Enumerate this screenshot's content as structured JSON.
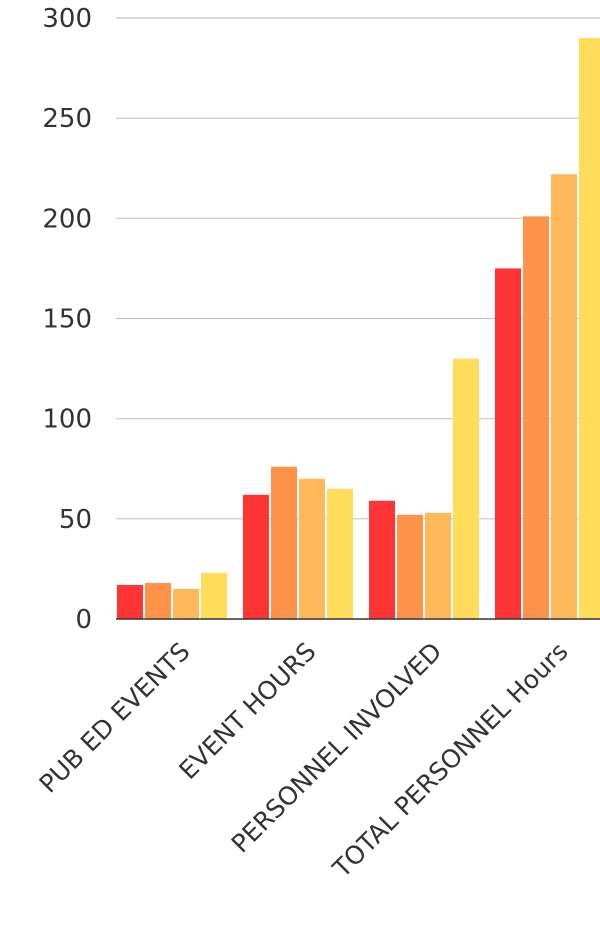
{
  "chart_data": {
    "type": "bar",
    "categories": [
      "PUB ED EVENTS",
      "EVENT HOURS",
      "PERSONNEL INVOLVED",
      "TOTAL PERSONNEL Hours"
    ],
    "series": [
      {
        "values": [
          17,
          62,
          59,
          175
        ]
      },
      {
        "values": [
          18,
          76,
          52,
          201
        ]
      },
      {
        "values": [
          15,
          70,
          53,
          222
        ]
      },
      {
        "values": [
          23,
          65,
          130,
          290
        ]
      }
    ],
    "series_colors": [
      "#ff3535",
      "#ff9349",
      "#ffb95a",
      "#ffdc5a"
    ],
    "ylim": [
      0,
      300
    ],
    "yticks": [
      "0",
      "50",
      "100",
      "150",
      "200",
      "250",
      "300"
    ],
    "grid": true,
    "title": "",
    "xlabel": "",
    "ylabel": ""
  }
}
